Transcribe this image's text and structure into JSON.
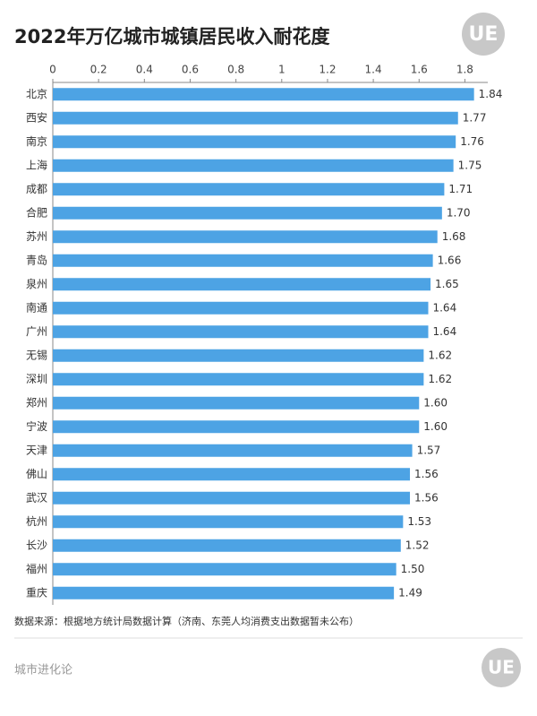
{
  "chart_data": {
    "type": "bar",
    "orientation": "horizontal",
    "title": "2022年万亿城市城镇居民收入耐花度",
    "categories": [
      "北京",
      "西安",
      "南京",
      "上海",
      "成都",
      "合肥",
      "苏州",
      "青岛",
      "泉州",
      "南通",
      "广州",
      "无锡",
      "深圳",
      "郑州",
      "宁波",
      "天津",
      "佛山",
      "武汉",
      "杭州",
      "长沙",
      "福州",
      "重庆"
    ],
    "values": [
      1.84,
      1.77,
      1.76,
      1.75,
      1.71,
      1.7,
      1.68,
      1.66,
      1.65,
      1.64,
      1.64,
      1.62,
      1.62,
      1.6,
      1.6,
      1.57,
      1.56,
      1.56,
      1.53,
      1.52,
      1.5,
      1.49
    ],
    "value_labels": [
      "1.84",
      "1.77",
      "1.76",
      "1.75",
      "1.71",
      "1.70",
      "1.68",
      "1.66",
      "1.65",
      "1.64",
      "1.64",
      "1.62",
      "1.62",
      "1.60",
      "1.60",
      "1.57",
      "1.56",
      "1.56",
      "1.53",
      "1.52",
      "1.50",
      "1.49"
    ],
    "color": "#4da3e4",
    "xlim": [
      0,
      1.9
    ],
    "xticks": [
      0,
      0.2,
      0.4,
      0.6,
      0.8,
      1,
      1.2,
      1.4,
      1.6,
      1.8
    ],
    "source": "数据来源：根据地方统计局数据计算（济南、东莞人均消费支出数据暂未公布）"
  },
  "footer": "城市进化论",
  "logo": "UE"
}
